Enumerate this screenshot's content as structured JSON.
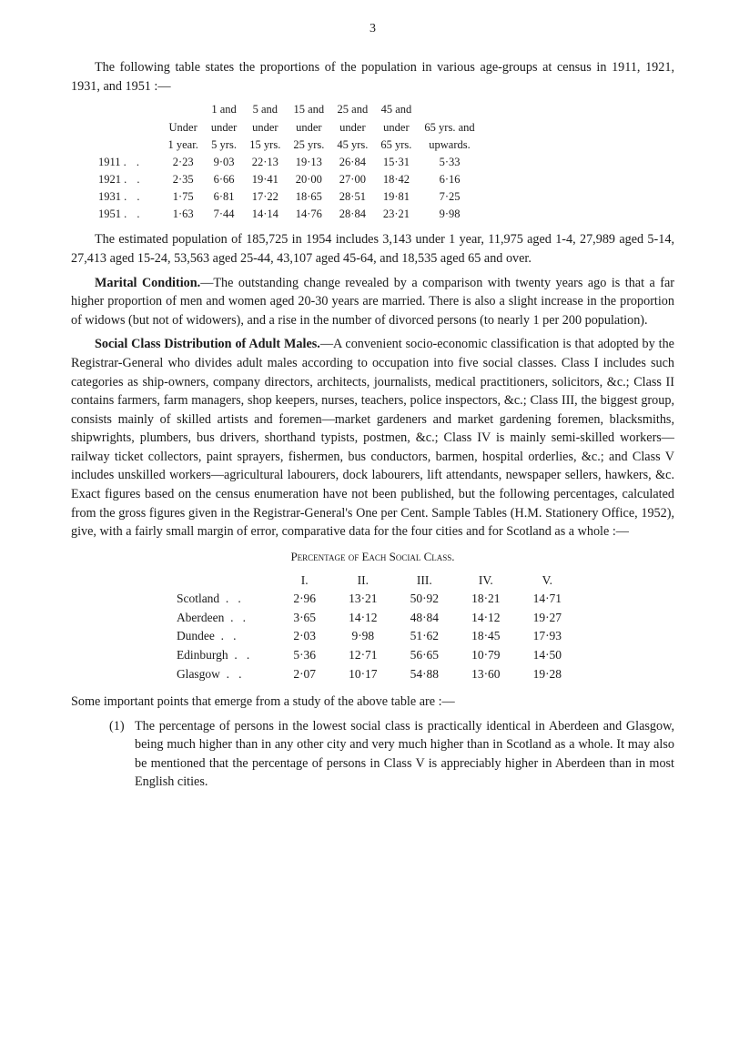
{
  "page_number": "3",
  "intro_para": "The following table states the proportions of the population in various age-groups at census in 1911, 1921, 1931, and 1951 :—",
  "age_table": {
    "headers_line1": [
      "",
      "1 and",
      "5 and",
      "15 and",
      "25 and",
      "45 and",
      ""
    ],
    "headers_line2": [
      "Under",
      "under",
      "under",
      "under",
      "under",
      "under",
      "65 yrs. and"
    ],
    "headers_line3": [
      "1 year.",
      "5 yrs.",
      "15 yrs.",
      "25 yrs.",
      "45 yrs.",
      "65 yrs.",
      "upwards."
    ],
    "rows": [
      {
        "year": "1911",
        "vals": [
          "2·23",
          "9·03",
          "22·13",
          "19·13",
          "26·84",
          "15·31",
          "5·33"
        ]
      },
      {
        "year": "1921",
        "vals": [
          "2·35",
          "6·66",
          "19·41",
          "20·00",
          "27·00",
          "18·42",
          "6·16"
        ]
      },
      {
        "year": "1931",
        "vals": [
          "1·75",
          "6·81",
          "17·22",
          "18·65",
          "28·51",
          "19·81",
          "7·25"
        ]
      },
      {
        "year": "1951",
        "vals": [
          "1·63",
          "7·44",
          "14·14",
          "14·76",
          "28·84",
          "23·21",
          "9·98"
        ]
      }
    ]
  },
  "after_age_table": "The estimated population of 185,725 in 1954 includes 3,143 under 1 year, 11,975 aged 1-4, 27,989 aged 5-14, 27,413 aged 15-24, 53,563 aged 25-44, 43,107 aged 45-64, and 18,535 aged 65 and over.",
  "marital_heading": "Marital Condition.",
  "marital_text": "—The outstanding change revealed by a comparison with twenty years ago is that a far higher proportion of men and women aged 20-30 years are married. There is also a slight increase in the proportion of widows (but not of widowers), and a rise in the number of divorced persons (to nearly 1 per 200 population).",
  "social_heading": "Social Class Distribution of Adult Males.",
  "social_text_1": "—A convenient socio-economic classification is that adopted by the Registrar-General who divides adult males according to occupation into five social classes. Class I includes such categories as ship-owners, company directors, architects, journalists, medical practitioners, solicitors, &c.; Class II contains farmers, farm managers, shop keepers, nurses, teachers, police inspectors, &c.; Class III, the biggest group, consists mainly of skilled artists and foremen—market gardeners and market gardening foremen, blacksmiths, shipwrights, plumbers, bus drivers, shorthand typists, postmen, &c.; Class IV is mainly semi-skilled workers—railway ticket collectors, paint sprayers, fishermen, bus conductors, barmen, hospital orderlies, &c.; and Class V includes unskilled workers—agricultural labourers, dock labourers, lift attendants, newspaper sellers, hawkers, &c. Exact figures based on the census enumeration have not been published, but the following percentages, calculated from the gross figures given in the Registrar-General's One per Cent. Sample Tables (H.M. Stationery Office, 1952), give, with a fairly small margin of error, comparative data for the four cities and for Scotland as a whole :—",
  "pct_caption": "Percentage of Each Social Class.",
  "pct_table": {
    "headers": [
      "I.",
      "II.",
      "III.",
      "IV.",
      "V."
    ],
    "rows": [
      {
        "region": "Scotland",
        "vals": [
          "2·96",
          "13·21",
          "50·92",
          "18·21",
          "14·71"
        ]
      },
      {
        "region": "Aberdeen",
        "vals": [
          "3·65",
          "14·12",
          "48·84",
          "14·12",
          "19·27"
        ]
      },
      {
        "region": "Dundee",
        "vals": [
          "2·03",
          "9·98",
          "51·62",
          "18·45",
          "17·93"
        ]
      },
      {
        "region": "Edinburgh",
        "vals": [
          "5·36",
          "12·71",
          "56·65",
          "10·79",
          "14·50"
        ]
      },
      {
        "region": "Glasgow",
        "vals": [
          "2·07",
          "10·17",
          "54·88",
          "13·60",
          "19·28"
        ]
      }
    ]
  },
  "points_intro": "Some important points that emerge from a study of the above table are :—",
  "list_num": "(1)",
  "list_text": "The percentage of persons in the lowest social class is practically identical in Aberdeen and Glasgow, being much higher than in any other city and very much higher than in Scotland as a whole. It may also be mentioned that the percentage of persons in Class V is appreciably higher in Aberdeen than in most English cities."
}
